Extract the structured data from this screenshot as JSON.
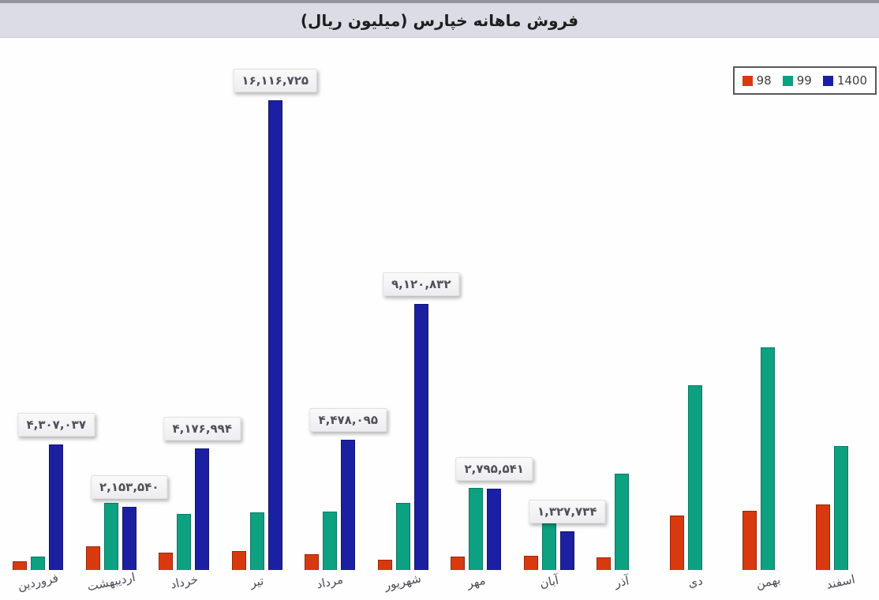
{
  "header": {
    "title": "فروش ماهانه خپارس (میلیون ریال)"
  },
  "legend": {
    "items": [
      {
        "label": "98",
        "color": "#d9390f"
      },
      {
        "label": "99",
        "color": "#0ca181"
      },
      {
        "label": "1400",
        "color": "#1b20a3"
      }
    ]
  },
  "chart_data": {
    "type": "bar",
    "title": "فروش ماهانه خپارس (میلیون ریال)",
    "unit": "میلیون ریال",
    "categories": [
      "فروردین",
      "اردیبهشت",
      "خرداد",
      "تیر",
      "مرداد",
      "شهریور",
      "مهر",
      "آبان",
      "آذر",
      "دی",
      "بهمن",
      "اسفند"
    ],
    "series": [
      {
        "name": "98",
        "color": "#d9390f",
        "values": [
          300000,
          810000,
          600000,
          650000,
          540000,
          350000,
          460000,
          490000,
          430000,
          1870000,
          2030000,
          2250000
        ],
        "data_labels": [
          null,
          null,
          null,
          null,
          null,
          null,
          null,
          null,
          null,
          null,
          null,
          null
        ]
      },
      {
        "name": "99",
        "color": "#0ca181",
        "values": [
          460000,
          2300000,
          1920000,
          1980000,
          2000000,
          2300000,
          2820000,
          1600000,
          3300000,
          6340000,
          7640000,
          4250000
        ],
        "data_labels": [
          null,
          null,
          null,
          null,
          null,
          null,
          null,
          null,
          null,
          null,
          null,
          null
        ]
      },
      {
        "name": "1400",
        "color": "#1b20a3",
        "values": [
          4307037,
          2153540,
          4176994,
          16116725,
          4478095,
          9120832,
          2795541,
          1327734,
          null,
          null,
          null,
          null
        ],
        "data_labels": [
          "۴,۳۰۷,۰۳۷",
          "۲,۱۵۳,۵۴۰",
          "۴,۱۷۶,۹۹۴",
          "۱۶,۱۱۶,۷۲۵",
          "۴,۴۷۸,۰۹۵",
          "۹,۱۲۰,۸۳۲",
          "۲,۷۹۵,۵۴۱",
          "۱,۳۲۷,۷۳۴",
          null,
          null,
          null,
          null
        ]
      }
    ],
    "ylim": [
      0,
      16116725
    ],
    "gridlines": false,
    "y_axis_visible": false,
    "legend_position": "top-right"
  }
}
